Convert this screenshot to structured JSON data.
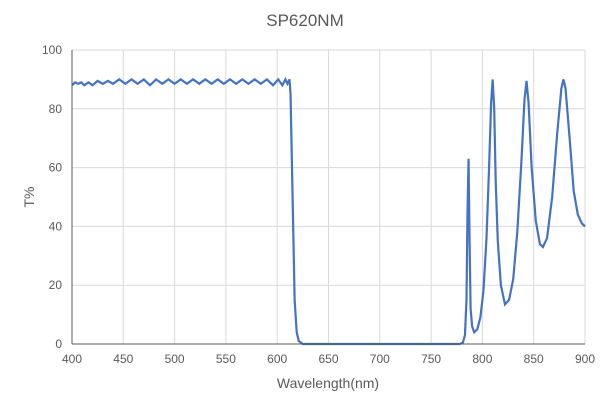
{
  "chart_data": {
    "type": "line",
    "title": "SP620NM",
    "xlabel": "Wavelength(nm)",
    "ylabel": "T%",
    "xlim": [
      400,
      900
    ],
    "ylim": [
      0,
      100
    ],
    "xticks": [
      400,
      450,
      500,
      550,
      600,
      650,
      700,
      750,
      800,
      850,
      900
    ],
    "yticks": [
      0,
      20,
      40,
      60,
      80,
      100
    ],
    "grid": true,
    "line_color": "#4472C4",
    "series": [
      {
        "x": [
          400,
          403,
          406,
          409,
          412,
          416,
          420,
          425,
          430,
          435,
          440,
          446,
          452,
          458,
          464,
          470,
          476,
          482,
          488,
          494,
          500,
          506,
          512,
          518,
          524,
          530,
          536,
          542,
          548,
          554,
          560,
          566,
          572,
          578,
          584,
          590,
          596,
          601,
          605,
          608,
          610,
          612,
          613,
          615,
          617,
          619,
          621,
          625,
          700,
          778,
          781,
          783,
          784.5,
          785.5,
          786.5,
          787.5,
          788.5,
          790,
          792,
          795,
          798,
          801,
          804,
          806.5,
          808.5,
          810,
          811.5,
          813,
          815,
          818,
          822,
          826,
          830,
          834,
          838,
          841,
          843,
          845,
          848,
          852,
          856,
          859,
          863,
          868,
          873,
          877,
          879,
          881,
          885,
          889,
          893,
          897,
          900
        ],
        "y": [
          88,
          89,
          88.5,
          89,
          88,
          89,
          88,
          89.5,
          88.5,
          89.5,
          88.5,
          90,
          88.5,
          90,
          88.5,
          90,
          88,
          90,
          88.5,
          90,
          88.5,
          90,
          88.5,
          90,
          88.5,
          90,
          88.5,
          90,
          88.5,
          90,
          88.5,
          90,
          88.5,
          90,
          88.5,
          90,
          88,
          90,
          88,
          90,
          88.5,
          90,
          85,
          50,
          15,
          4,
          1,
          0,
          0,
          0,
          0.5,
          3,
          15,
          45,
          63,
          35,
          12,
          6,
          4,
          5,
          9,
          18,
          36,
          60,
          82,
          90,
          80,
          55,
          35,
          20,
          13.5,
          15,
          22,
          38,
          62,
          83,
          89.5,
          82,
          60,
          42,
          34,
          33,
          36,
          50,
          72,
          87,
          90,
          87,
          70,
          52,
          44,
          41,
          40
        ]
      }
    ]
  }
}
